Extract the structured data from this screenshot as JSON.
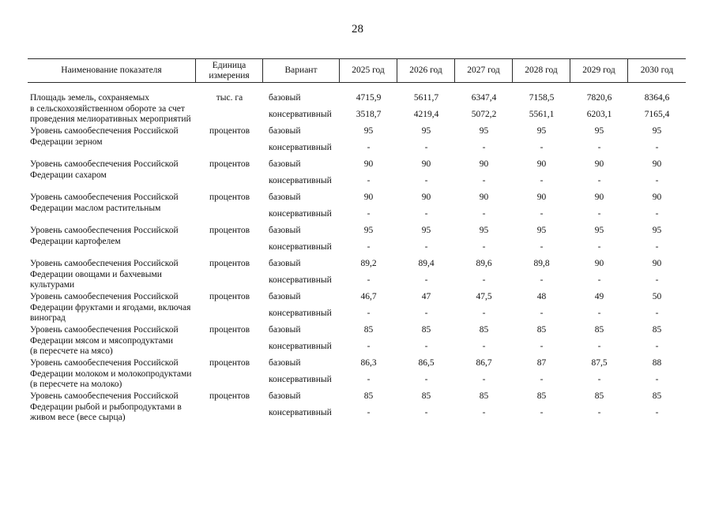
{
  "page_number": "28",
  "table": {
    "columns": {
      "name": "Наименование показателя",
      "unit": "Единица измерения",
      "variant": "Вариант",
      "years": [
        "2025 год",
        "2026 год",
        "2027 год",
        "2028 год",
        "2029 год",
        "2030 год"
      ]
    },
    "rows": [
      {
        "name_lines": [
          "Площадь земель, сохраняемых",
          "в сельскохозяйственном обороте за счет",
          "проведения мелиоративных мероприятий"
        ],
        "unit": "тыс. га",
        "variants": [
          {
            "label": "базовый",
            "values": [
              "4715,9",
              "5611,7",
              "6347,4",
              "7158,5",
              "7820,6",
              "8364,6"
            ]
          },
          {
            "label": "консервативный",
            "values": [
              "3518,7",
              "4219,4",
              "5072,2",
              "5561,1",
              "6203,1",
              "7165,4"
            ]
          }
        ]
      },
      {
        "name_lines": [
          "Уровень самообеспечения Российской",
          "Федерации зерном"
        ],
        "unit": "процентов",
        "variants": [
          {
            "label": "базовый",
            "values": [
              "95",
              "95",
              "95",
              "95",
              "95",
              "95"
            ]
          },
          {
            "label": "консервативный",
            "values": [
              "-",
              "-",
              "-",
              "-",
              "-",
              "-"
            ]
          }
        ]
      },
      {
        "name_lines": [
          "Уровень самообеспечения Российской",
          "Федерации сахаром"
        ],
        "unit": "процентов",
        "variants": [
          {
            "label": "базовый",
            "values": [
              "90",
              "90",
              "90",
              "90",
              "90",
              "90"
            ]
          },
          {
            "label": "консервативный",
            "values": [
              "-",
              "-",
              "-",
              "-",
              "-",
              "-"
            ]
          }
        ]
      },
      {
        "name_lines": [
          "Уровень самообеспечения Российской",
          "Федерации маслом растительным"
        ],
        "unit": "процентов",
        "variants": [
          {
            "label": "базовый",
            "values": [
              "90",
              "90",
              "90",
              "90",
              "90",
              "90"
            ]
          },
          {
            "label": "консервативный",
            "values": [
              "-",
              "-",
              "-",
              "-",
              "-",
              "-"
            ]
          }
        ]
      },
      {
        "name_lines": [
          "Уровень самообеспечения Российской",
          "Федерации картофелем"
        ],
        "unit": "процентов",
        "variants": [
          {
            "label": "базовый",
            "values": [
              "95",
              "95",
              "95",
              "95",
              "95",
              "95"
            ]
          },
          {
            "label": "консервативный",
            "values": [
              "-",
              "-",
              "-",
              "-",
              "-",
              "-"
            ]
          }
        ]
      },
      {
        "name_lines": [
          "Уровень самообеспечения Российской",
          "Федерации овощами и бахчевыми",
          "культурами"
        ],
        "unit": "процентов",
        "variants": [
          {
            "label": "базовый",
            "values": [
              "89,2",
              "89,4",
              "89,6",
              "89,8",
              "90",
              "90"
            ]
          },
          {
            "label": "консервативный",
            "values": [
              "-",
              "-",
              "-",
              "-",
              "-",
              "-"
            ]
          }
        ]
      },
      {
        "name_lines": [
          "Уровень самообеспечения Российской",
          "Федерации фруктами и ягодами, включая",
          "виноград"
        ],
        "unit": "процентов",
        "variants": [
          {
            "label": "базовый",
            "values": [
              "46,7",
              "47",
              "47,5",
              "48",
              "49",
              "50"
            ]
          },
          {
            "label": "консервативный",
            "values": [
              "-",
              "-",
              "-",
              "-",
              "-",
              "-"
            ]
          }
        ]
      },
      {
        "name_lines": [
          "Уровень самообеспечения Российской",
          "Федерации мясом и мясопродуктами",
          "(в пересчете на мясо)"
        ],
        "unit": "процентов",
        "variants": [
          {
            "label": "базовый",
            "values": [
              "85",
              "85",
              "85",
              "85",
              "85",
              "85"
            ]
          },
          {
            "label": "консервативный",
            "values": [
              "-",
              "-",
              "-",
              "-",
              "-",
              "-"
            ]
          }
        ]
      },
      {
        "name_lines": [
          "Уровень самообеспечения Российской",
          "Федерации молоком и молокопродуктами",
          "(в пересчете на молоко)"
        ],
        "unit": "процентов",
        "variants": [
          {
            "label": "базовый",
            "values": [
              "86,3",
              "86,5",
              "86,7",
              "87",
              "87,5",
              "88"
            ]
          },
          {
            "label": "консервативный",
            "values": [
              "-",
              "-",
              "-",
              "-",
              "-",
              "-"
            ]
          }
        ]
      },
      {
        "name_lines": [
          "Уровень самообеспечения Российской",
          "Федерации рыбой и рыбопродуктами в",
          "живом весе (весе сырца)"
        ],
        "unit": "процентов",
        "variants": [
          {
            "label": "базовый",
            "values": [
              "85",
              "85",
              "85",
              "85",
              "85",
              "85"
            ]
          },
          {
            "label": "консервативный",
            "values": [
              "-",
              "-",
              "-",
              "-",
              "-",
              "-"
            ]
          }
        ]
      }
    ]
  }
}
